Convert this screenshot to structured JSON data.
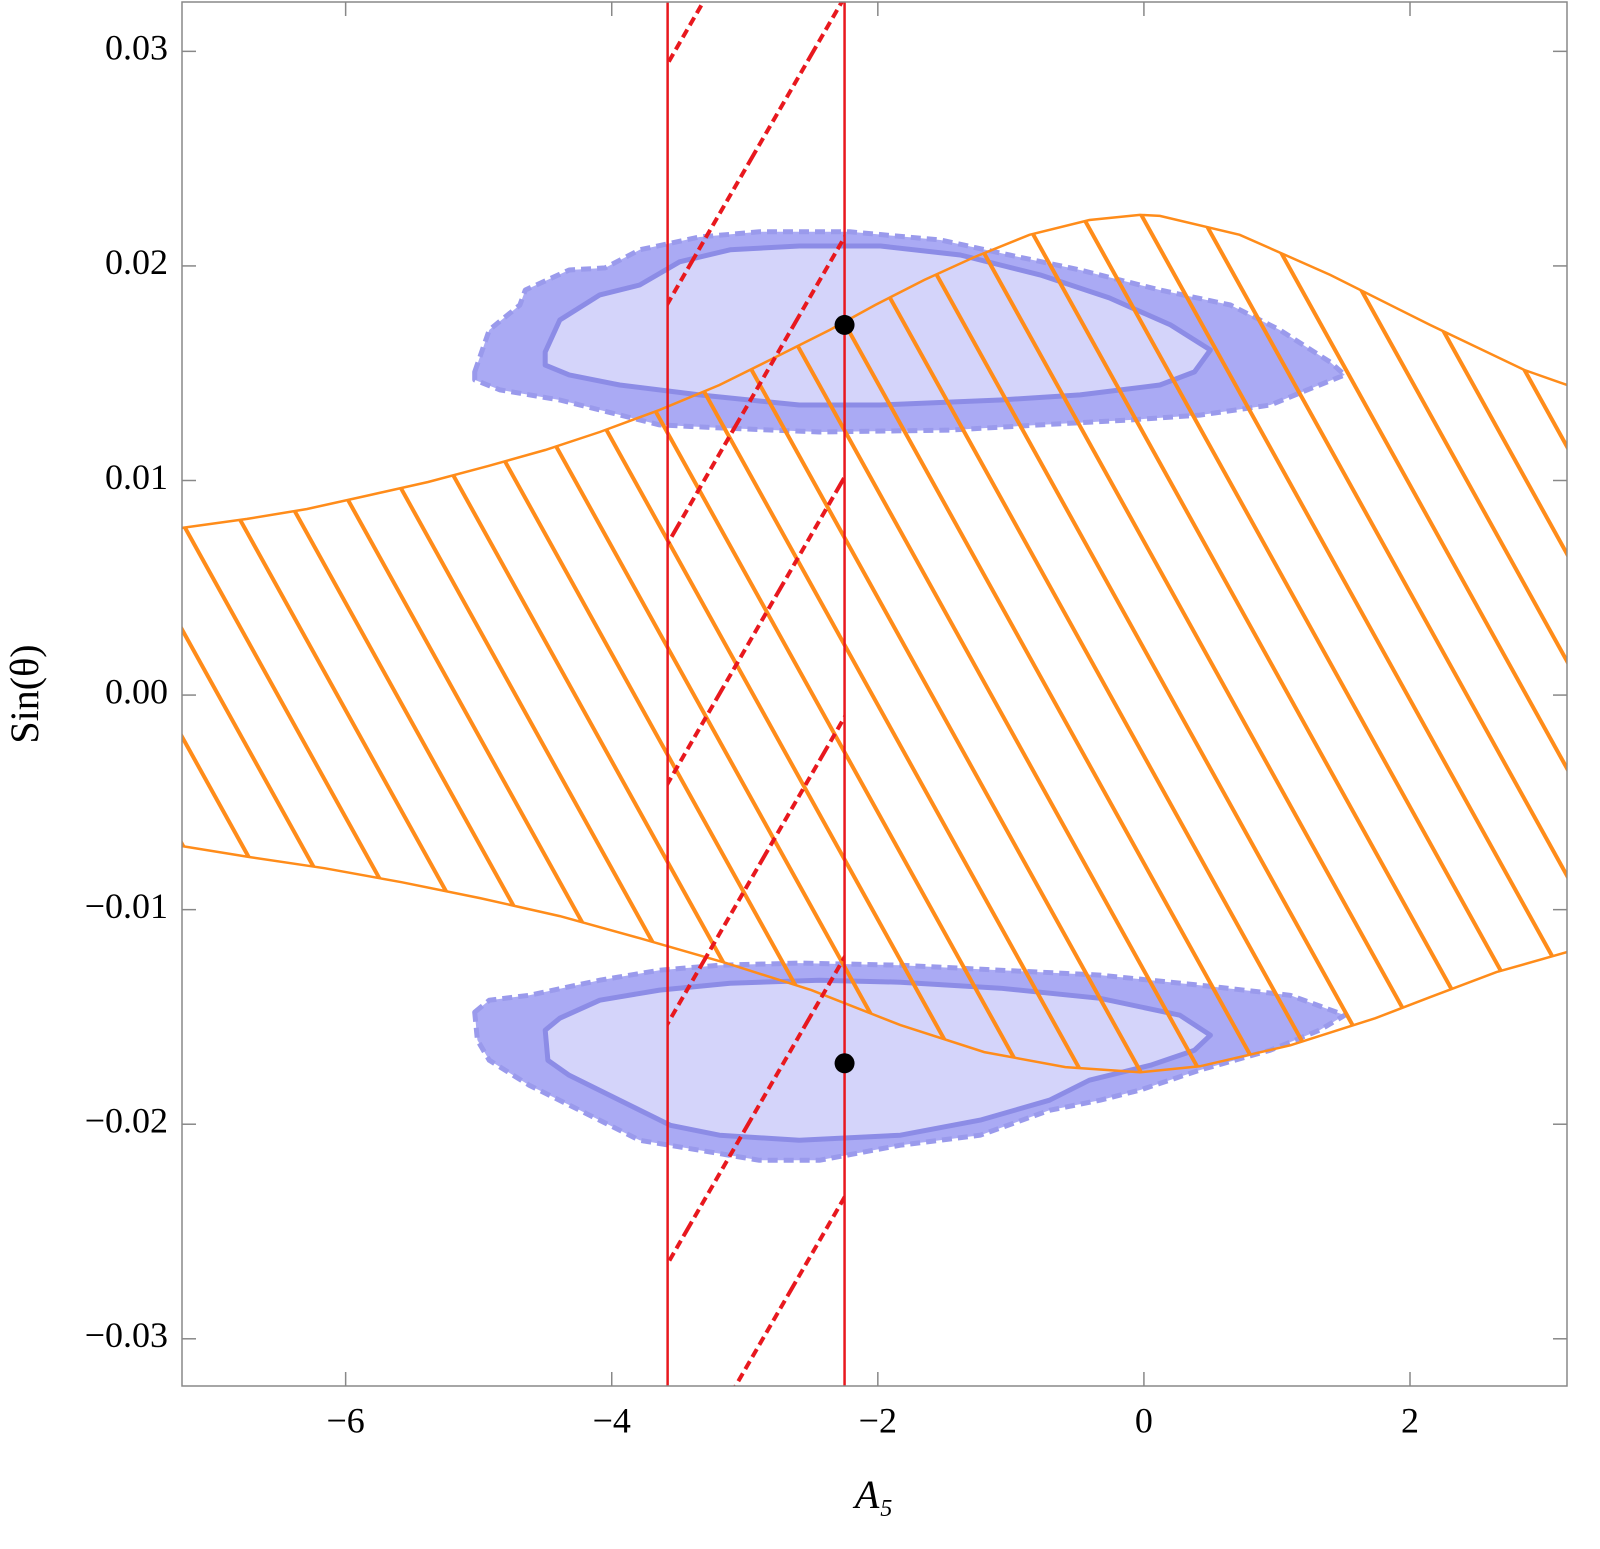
{
  "chart_data": {
    "type": "region",
    "xlabel": "A₅",
    "ylabel": "Sin(θ)",
    "xlim": [
      -7.23,
      3.18
    ],
    "ylim": [
      -0.0322,
      0.0323
    ],
    "xticks": [
      {
        "value": -6,
        "label": "−6"
      },
      {
        "value": -4,
        "label": "−4"
      },
      {
        "value": -2,
        "label": "−2"
      },
      0,
      2
    ],
    "yticks": [
      {
        "value": -0.03,
        "label": "−0.03"
      },
      {
        "value": -0.02,
        "label": "−0.02"
      },
      {
        "value": -0.01,
        "label": "−0.01"
      },
      {
        "value": 0,
        "label": "0.00"
      },
      0.01,
      0.02,
      0.03
    ],
    "contours": [
      {
        "fill": "#aaaaf4",
        "stroke": "#9a9aec",
        "dashed": true,
        "x": [
          -5.03,
          -4.92,
          -4.69,
          -4.65,
          -4.32,
          -4.05,
          -3.79,
          -3.34,
          -2.89,
          -2.21,
          -1.53,
          -1.01,
          -0.48,
          0.12,
          0.65,
          1.02,
          1.4,
          1.51,
          1.32,
          0.95,
          0.42,
          -0.11,
          -0.78,
          -1.46,
          -2.44,
          -3.19,
          -3.64,
          -4.39,
          -4.84,
          -5.03
        ],
        "y": [
          0.01506,
          0.01702,
          0.01818,
          0.01888,
          0.01981,
          0.01991,
          0.02075,
          0.02135,
          0.02159,
          0.02159,
          0.02121,
          0.02051,
          0.01981,
          0.01888,
          0.01818,
          0.01702,
          0.01552,
          0.01492,
          0.01445,
          0.01352,
          0.01305,
          0.01282,
          0.01259,
          0.01235,
          0.01226,
          0.01245,
          0.01259,
          0.01375,
          0.01422,
          0.01469
        ]
      },
      {
        "fill": "#d4d4fa",
        "stroke": "#8c8ce6",
        "dashed": false,
        "x": [
          -4.5,
          -4.39,
          -4.09,
          -3.79,
          -3.49,
          -3.11,
          -2.59,
          -1.98,
          -1.38,
          -0.78,
          -0.26,
          0.2,
          0.5,
          0.38,
          0.12,
          -0.48,
          -1.08,
          -1.98,
          -2.59,
          -3.34,
          -3.94,
          -4.32,
          -4.5
        ],
        "y": [
          0.01599,
          0.01748,
          0.01865,
          0.01911,
          0.02019,
          0.02075,
          0.02093,
          0.02093,
          0.02051,
          0.01958,
          0.01851,
          0.01725,
          0.01608,
          0.01506,
          0.01445,
          0.01399,
          0.01375,
          0.01352,
          0.01352,
          0.01399,
          0.01445,
          0.01492,
          0.01538
        ]
      },
      {
        "fill": "#aaaaf4",
        "stroke": "#9a9aec",
        "dashed": true,
        "x": [
          -5.03,
          -4.92,
          -4.62,
          -4.09,
          -3.64,
          -3.19,
          -2.59,
          -1.83,
          -1.08,
          -0.33,
          0.42,
          1.1,
          1.51,
          1.32,
          0.95,
          0.42,
          -0.03,
          -0.33,
          -0.71,
          -1.23,
          -1.83,
          -2.44,
          -2.89,
          -3.34,
          -3.79,
          -4.24,
          -4.62,
          -4.92,
          -5.01
        ],
        "y": [
          -0.01478,
          -0.01422,
          -0.01399,
          -0.01329,
          -0.01282,
          -0.01259,
          -0.01249,
          -0.01259,
          -0.01282,
          -0.01305,
          -0.01352,
          -0.01399,
          -0.01492,
          -0.01562,
          -0.01655,
          -0.01748,
          -0.01841,
          -0.01888,
          -0.01935,
          -0.02051,
          -0.02098,
          -0.02168,
          -0.02168,
          -0.02121,
          -0.02075,
          -0.01935,
          -0.01818,
          -0.01702,
          -0.01608
        ]
      },
      {
        "fill": "#d4d4fa",
        "stroke": "#8c8ce6",
        "dashed": false,
        "x": [
          -4.5,
          -4.39,
          -4.09,
          -3.64,
          -3.11,
          -2.44,
          -1.83,
          -1.08,
          -0.33,
          0.27,
          0.5,
          0.38,
          0.05,
          -0.41,
          -0.71,
          -1.23,
          -1.83,
          -2.59,
          -3.19,
          -3.56,
          -3.94,
          -4.32,
          -4.48
        ],
        "y": [
          -0.01562,
          -0.01506,
          -0.01422,
          -0.01375,
          -0.01343,
          -0.01329,
          -0.01338,
          -0.01366,
          -0.01413,
          -0.01492,
          -0.01585,
          -0.01655,
          -0.01725,
          -0.01795,
          -0.01888,
          -0.01981,
          -0.02051,
          -0.02075,
          -0.02051,
          -0.02005,
          -0.01888,
          -0.01772,
          -0.01702
        ]
      }
    ],
    "orange_band": {
      "color": "#ff8c1a",
      "upper": {
        "x": [
          -7.23,
          -6.74,
          -6.29,
          -5.82,
          -5.38,
          -4.93,
          -4.5,
          -4.09,
          -3.64,
          -3.19,
          -2.81,
          -2.36,
          -2.02,
          -1.65,
          -1.27,
          -0.86,
          -0.41,
          -0.03,
          0.12,
          0.72,
          1.4,
          2.15,
          2.86,
          3.18
        ],
        "y": [
          0.00779,
          0.00821,
          0.00867,
          0.00932,
          0.00993,
          0.01067,
          0.01142,
          0.01226,
          0.01329,
          0.01445,
          0.01562,
          0.01702,
          0.01818,
          0.01935,
          0.02042,
          0.02145,
          0.02214,
          0.02238,
          0.02233,
          0.02145,
          0.01958,
          0.01725,
          0.01515,
          0.01445
        ]
      },
      "lower": {
        "x": [
          -7.23,
          -6.72,
          -6.16,
          -5.58,
          -4.99,
          -4.39,
          -3.79,
          -3.14,
          -2.5,
          -1.83,
          -1.2,
          -0.59,
          -0.03,
          0.42,
          1.1,
          1.74,
          2.15,
          2.65,
          3.18
        ],
        "y": [
          -0.00704,
          -0.00755,
          -0.00807,
          -0.00872,
          -0.00946,
          -0.0103,
          -0.01133,
          -0.01249,
          -0.01375,
          -0.01538,
          -0.01664,
          -0.01734,
          -0.01758,
          -0.0173,
          -0.01632,
          -0.01506,
          -0.01408,
          -0.01291,
          -0.01198
        ]
      }
    },
    "red_band": {
      "color": "#e8181e",
      "x": [
        -3.58,
        -2.25
      ]
    },
    "points": {
      "color": "#000000",
      "x": [
        -2.25,
        -2.25
      ],
      "y": [
        0.01725,
        -0.01716
      ]
    }
  }
}
